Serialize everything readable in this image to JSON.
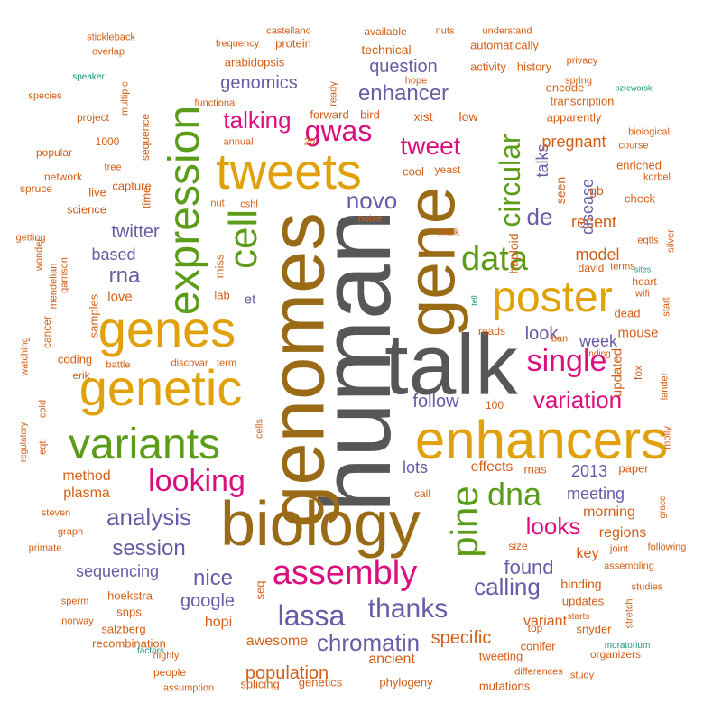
{
  "palette": {
    "gray": "#575757",
    "brown": "#9a6b16",
    "gold": "#e0a10a",
    "green": "#5b9c1a",
    "pink": "#dc0f7e",
    "purple": "#6b5aa5",
    "orange": "#d35f18",
    "teal": "#1b9577"
  },
  "words": [
    {
      "text": "human",
      "color": "gray",
      "weight": 100
    },
    {
      "text": "talk",
      "color": "gray",
      "weight": 85
    },
    {
      "text": "genomes",
      "color": "brown",
      "weight": 82
    },
    {
      "text": "biology",
      "color": "brown",
      "weight": 78
    },
    {
      "text": "gene",
      "color": "brown",
      "weight": 70
    },
    {
      "text": "enhancers",
      "color": "gold",
      "weight": 62
    },
    {
      "text": "tweets",
      "color": "gold",
      "weight": 55
    },
    {
      "text": "genes",
      "color": "gold",
      "weight": 55
    },
    {
      "text": "genetic",
      "color": "gold",
      "weight": 55
    },
    {
      "text": "poster",
      "color": "gold",
      "weight": 52
    },
    {
      "text": "expression",
      "color": "green",
      "weight": 50
    },
    {
      "text": "variants",
      "color": "green",
      "weight": 50
    },
    {
      "text": "cell",
      "color": "green",
      "weight": 45
    },
    {
      "text": "pine",
      "color": "green",
      "weight": 42
    },
    {
      "text": "assembly",
      "color": "pink",
      "weight": 38
    },
    {
      "text": "data",
      "color": "green",
      "weight": 38
    },
    {
      "text": "dna",
      "color": "green",
      "weight": 38
    },
    {
      "text": "looking",
      "color": "pink",
      "weight": 32
    },
    {
      "text": "single",
      "color": "pink",
      "weight": 32
    },
    {
      "text": "circular",
      "color": "green",
      "weight": 32
    },
    {
      "text": "gwas",
      "color": "pink",
      "weight": 30
    },
    {
      "text": "lassa",
      "color": "purple",
      "weight": 30
    },
    {
      "text": "thanks",
      "color": "purple",
      "weight": 30
    },
    {
      "text": "tweet",
      "color": "pink",
      "weight": 28
    },
    {
      "text": "looks",
      "color": "pink",
      "weight": 28
    },
    {
      "text": "variation",
      "color": "pink",
      "weight": 26
    },
    {
      "text": "talking",
      "color": "pink",
      "weight": 26
    },
    {
      "text": "chromatin",
      "color": "purple",
      "weight": 26
    },
    {
      "text": "calling",
      "color": "purple",
      "weight": 26
    },
    {
      "text": "analysis",
      "color": "purple",
      "weight": 26
    },
    {
      "text": "enhancer",
      "color": "purple",
      "weight": 24
    },
    {
      "text": "novo",
      "color": "purple",
      "weight": 24
    },
    {
      "text": "de",
      "color": "purple",
      "weight": 24
    },
    {
      "text": "rna",
      "color": "purple",
      "weight": 24
    },
    {
      "text": "session",
      "color": "purple",
      "weight": 24
    },
    {
      "text": "nice",
      "color": "purple",
      "weight": 24
    },
    {
      "text": "population",
      "color": "orange",
      "weight": 20
    },
    {
      "text": "specific",
      "color": "orange",
      "weight": 20
    },
    {
      "text": "found",
      "color": "purple",
      "weight": 20
    },
    {
      "text": "follow",
      "color": "purple",
      "weight": 20
    },
    {
      "text": "genomics",
      "color": "purple",
      "weight": 20
    },
    {
      "text": "question",
      "color": "purple",
      "weight": 20
    },
    {
      "text": "twitter",
      "color": "purple",
      "weight": 20
    },
    {
      "text": "google",
      "color": "purple",
      "weight": 20
    },
    {
      "text": "sequencing",
      "color": "purple",
      "weight": 18
    },
    {
      "text": "look",
      "color": "purple",
      "weight": 20
    },
    {
      "text": "disease",
      "color": "purple",
      "weight": 18
    },
    {
      "text": "talks",
      "color": "purple",
      "weight": 18
    },
    {
      "text": "meeting",
      "color": "purple",
      "weight": 18
    },
    {
      "text": "2013",
      "color": "purple",
      "weight": 18
    },
    {
      "text": "model",
      "color": "orange",
      "weight": 18
    },
    {
      "text": "recent",
      "color": "orange",
      "weight": 18
    },
    {
      "text": "pregnant",
      "color": "orange",
      "weight": 18
    },
    {
      "text": "based",
      "color": "purple",
      "weight": 18
    },
    {
      "text": "lots",
      "color": "purple",
      "weight": 18
    },
    {
      "text": "week",
      "color": "purple",
      "weight": 16
    },
    {
      "text": "effects",
      "color": "orange",
      "weight": 16
    },
    {
      "text": "awesome",
      "color": "orange",
      "weight": 16
    },
    {
      "text": "hopi",
      "color": "orange",
      "weight": 16
    },
    {
      "text": "ancient",
      "color": "orange",
      "weight": 16
    },
    {
      "text": "variant",
      "color": "orange",
      "weight": 16
    },
    {
      "text": "method",
      "color": "orange",
      "weight": 16
    },
    {
      "text": "plasma",
      "color": "orange",
      "weight": 16
    },
    {
      "text": "morning",
      "color": "orange",
      "weight": 16
    },
    {
      "text": "regions",
      "color": "orange",
      "weight": 16
    },
    {
      "text": "binding",
      "color": "orange",
      "weight": 14
    },
    {
      "text": "key",
      "color": "orange",
      "weight": 16
    },
    {
      "text": "mouse",
      "color": "orange",
      "weight": 14
    },
    {
      "text": "updated",
      "color": "orange",
      "weight": 14
    },
    {
      "text": "love",
      "color": "orange",
      "weight": 14
    },
    {
      "text": "et",
      "color": "purple",
      "weight": 14
    },
    {
      "text": "haploid",
      "color": "orange",
      "weight": 14
    },
    {
      "text": "seen",
      "color": "orange",
      "weight": 14
    },
    {
      "text": "gb",
      "color": "orange",
      "weight": 14
    },
    {
      "text": "technical",
      "color": "orange",
      "weight": 14
    },
    {
      "text": "automatically",
      "color": "orange",
      "weight": 12
    },
    {
      "text": "activity",
      "color": "orange",
      "weight": 12
    },
    {
      "text": "history",
      "color": "orange",
      "weight": 12
    },
    {
      "text": "low",
      "color": "orange",
      "weight": 14
    },
    {
      "text": "xist",
      "color": "orange",
      "weight": 14
    },
    {
      "text": "encode",
      "color": "orange",
      "weight": 12
    },
    {
      "text": "transcription",
      "color": "orange",
      "weight": 12
    },
    {
      "text": "apparently",
      "color": "orange",
      "weight": 12
    },
    {
      "text": "enriched",
      "color": "orange",
      "weight": 12
    },
    {
      "text": "check",
      "color": "orange",
      "weight": 12
    },
    {
      "text": "arabidopsis",
      "color": "orange",
      "weight": 12
    },
    {
      "text": "protein",
      "color": "orange",
      "weight": 12
    },
    {
      "text": "forward",
      "color": "orange",
      "weight": 12
    },
    {
      "text": "bird",
      "color": "orange",
      "weight": 12
    },
    {
      "text": "yeast",
      "color": "orange",
      "weight": 11
    },
    {
      "text": "cool",
      "color": "orange",
      "weight": 12
    },
    {
      "text": "sequence",
      "color": "orange",
      "weight": 12
    },
    {
      "text": "capture",
      "color": "orange",
      "weight": 12
    },
    {
      "text": "time",
      "color": "orange",
      "weight": 12
    },
    {
      "text": "science",
      "color": "orange",
      "weight": 12
    },
    {
      "text": "live",
      "color": "orange",
      "weight": 12
    },
    {
      "text": "samples",
      "color": "orange",
      "weight": 12
    },
    {
      "text": "coding",
      "color": "orange",
      "weight": 12
    },
    {
      "text": "miss",
      "color": "orange",
      "weight": 12
    },
    {
      "text": "lab",
      "color": "orange",
      "weight": 12
    },
    {
      "text": "hoekstra",
      "color": "orange",
      "weight": 12
    },
    {
      "text": "salzberg",
      "color": "orange",
      "weight": 12
    },
    {
      "text": "snps",
      "color": "orange",
      "weight": 12
    },
    {
      "text": "recombination",
      "color": "orange",
      "weight": 12
    },
    {
      "text": "splicing",
      "color": "orange",
      "weight": 12
    },
    {
      "text": "genetics",
      "color": "orange",
      "weight": 12
    },
    {
      "text": "phylogeny",
      "color": "orange",
      "weight": 12
    },
    {
      "text": "tweeting",
      "color": "orange",
      "weight": 12
    },
    {
      "text": "mutations",
      "color": "orange",
      "weight": 12
    },
    {
      "text": "conifer",
      "color": "orange",
      "weight": 12
    },
    {
      "text": "updates",
      "color": "orange",
      "weight": 12
    },
    {
      "text": "snyder",
      "color": "orange",
      "weight": 12
    },
    {
      "text": "top",
      "color": "orange",
      "weight": 11
    },
    {
      "text": "organizers",
      "color": "orange",
      "weight": 11
    },
    {
      "text": "rnas",
      "color": "orange",
      "weight": 12
    },
    {
      "text": "paper",
      "color": "orange",
      "weight": 12
    },
    {
      "text": "size",
      "color": "orange",
      "weight": 11
    },
    {
      "text": "seq",
      "color": "orange",
      "weight": 12
    },
    {
      "text": "call",
      "color": "orange",
      "weight": 11
    },
    {
      "text": "100",
      "color": "orange",
      "weight": 11
    },
    {
      "text": "reads",
      "color": "orange",
      "weight": 11
    },
    {
      "text": "ban",
      "color": "orange",
      "weight": 10
    },
    {
      "text": "fox",
      "color": "orange",
      "weight": 11
    },
    {
      "text": "dead",
      "color": "orange",
      "weight": 12
    },
    {
      "text": "heart",
      "color": "orange",
      "weight": 11
    },
    {
      "text": "wifi",
      "color": "orange",
      "weight": 10
    },
    {
      "text": "david",
      "color": "orange",
      "weight": 11
    },
    {
      "text": "terms",
      "color": "orange",
      "weight": 10
    },
    {
      "text": "mark",
      "color": "orange",
      "weight": 10
    },
    {
      "text": "cells",
      "color": "orange",
      "weight": 10
    },
    {
      "text": "discovar",
      "color": "orange",
      "weight": 10
    },
    {
      "text": "term",
      "color": "orange",
      "weight": 10
    },
    {
      "text": "battle",
      "color": "orange",
      "weight": 10
    },
    {
      "text": "erik",
      "color": "orange",
      "weight": 11
    },
    {
      "text": "watching",
      "color": "orange",
      "weight": 11
    },
    {
      "text": "cancer",
      "color": "orange",
      "weight": 11
    },
    {
      "text": "mendelian",
      "color": "orange",
      "weight": 10
    },
    {
      "text": "garrison",
      "color": "orange",
      "weight": 10
    },
    {
      "text": "wonder",
      "color": "orange",
      "weight": 10
    },
    {
      "text": "getting",
      "color": "orange",
      "weight": 10
    },
    {
      "text": "spruce",
      "color": "orange",
      "weight": 11
    },
    {
      "text": "network",
      "color": "orange",
      "weight": 11
    },
    {
      "text": "popular",
      "color": "orange",
      "weight": 11
    },
    {
      "text": "project",
      "color": "orange",
      "weight": 11
    },
    {
      "text": "species",
      "color": "orange",
      "weight": 10
    },
    {
      "text": "speaker",
      "color": "teal",
      "weight": 9
    },
    {
      "text": "overlap",
      "color": "orange",
      "weight": 10
    },
    {
      "text": "stickleback",
      "color": "orange",
      "weight": 10
    },
    {
      "text": "multiple",
      "color": "orange",
      "weight": 10
    },
    {
      "text": "1000",
      "color": "orange",
      "weight": 11
    },
    {
      "text": "tree",
      "color": "orange",
      "weight": 10
    },
    {
      "text": "functional",
      "color": "orange",
      "weight": 10
    },
    {
      "text": "annual",
      "color": "orange",
      "weight": 10
    },
    {
      "text": "20",
      "color": "orange",
      "weight": 10
    },
    {
      "text": "nut",
      "color": "orange",
      "weight": 10
    },
    {
      "text": "cshl",
      "color": "orange",
      "weight": 10
    },
    {
      "text": "noise",
      "color": "orange",
      "weight": 10
    },
    {
      "text": "hope",
      "color": "orange",
      "weight": 10
    },
    {
      "text": "ready",
      "color": "orange",
      "weight": 10
    },
    {
      "text": "frequency",
      "color": "orange",
      "weight": 10
    },
    {
      "text": "castellano",
      "color": "orange",
      "weight": 10
    },
    {
      "text": "available",
      "color": "orange",
      "weight": 11
    },
    {
      "text": "nuts",
      "color": "orange",
      "weight": 10
    },
    {
      "text": "understand",
      "color": "orange",
      "weight": 10
    },
    {
      "text": "privacy",
      "color": "orange",
      "weight": 10
    },
    {
      "text": "spring",
      "color": "orange",
      "weight": 10
    },
    {
      "text": "pzreworski",
      "color": "teal",
      "weight": 9
    },
    {
      "text": "biological",
      "color": "orange",
      "weight": 10
    },
    {
      "text": "course",
      "color": "orange",
      "weight": 10
    },
    {
      "text": "korbel",
      "color": "orange",
      "weight": 10
    },
    {
      "text": "eqtls",
      "color": "orange",
      "weight": 10
    },
    {
      "text": "silver",
      "color": "orange",
      "weight": 10
    },
    {
      "text": "sites",
      "color": "teal",
      "weight": 8
    },
    {
      "text": "start",
      "color": "orange",
      "weight": 10
    },
    {
      "text": "lander",
      "color": "orange",
      "weight": 10
    },
    {
      "text": "molly",
      "color": "orange",
      "weight": 10
    },
    {
      "text": "finding",
      "color": "orange",
      "weight": 10
    },
    {
      "text": "tell",
      "color": "teal",
      "weight": 8
    },
    {
      "text": "grace",
      "color": "orange",
      "weight": 9
    },
    {
      "text": "joint",
      "color": "orange",
      "weight": 10
    },
    {
      "text": "following",
      "color": "orange",
      "weight": 10
    },
    {
      "text": "assembling",
      "color": "orange",
      "weight": 10
    },
    {
      "text": "stretch",
      "color": "orange",
      "weight": 10
    },
    {
      "text": "studies",
      "color": "orange",
      "weight": 10
    },
    {
      "text": "starts",
      "color": "orange",
      "weight": 10
    },
    {
      "text": "moratorium",
      "color": "teal",
      "weight": 9
    },
    {
      "text": "differences",
      "color": "orange",
      "weight": 10
    },
    {
      "text": "study",
      "color": "orange",
      "weight": 10
    },
    {
      "text": "highly",
      "color": "orange",
      "weight": 10
    },
    {
      "text": "factors",
      "color": "teal",
      "weight": 9
    },
    {
      "text": "people",
      "color": "orange",
      "weight": 11
    },
    {
      "text": "assumption",
      "color": "orange",
      "weight": 10
    },
    {
      "text": "norway",
      "color": "orange",
      "weight": 10
    },
    {
      "text": "sperm",
      "color": "orange",
      "weight": 10
    },
    {
      "text": "primate",
      "color": "orange",
      "weight": 10
    },
    {
      "text": "graph",
      "color": "orange",
      "weight": 10
    },
    {
      "text": "steven",
      "color": "orange",
      "weight": 10
    },
    {
      "text": "regulatory",
      "color": "orange",
      "weight": 9
    },
    {
      "text": "eqtl",
      "color": "orange",
      "weight": 10
    },
    {
      "text": "cold",
      "color": "orange",
      "weight": 10
    }
  ]
}
